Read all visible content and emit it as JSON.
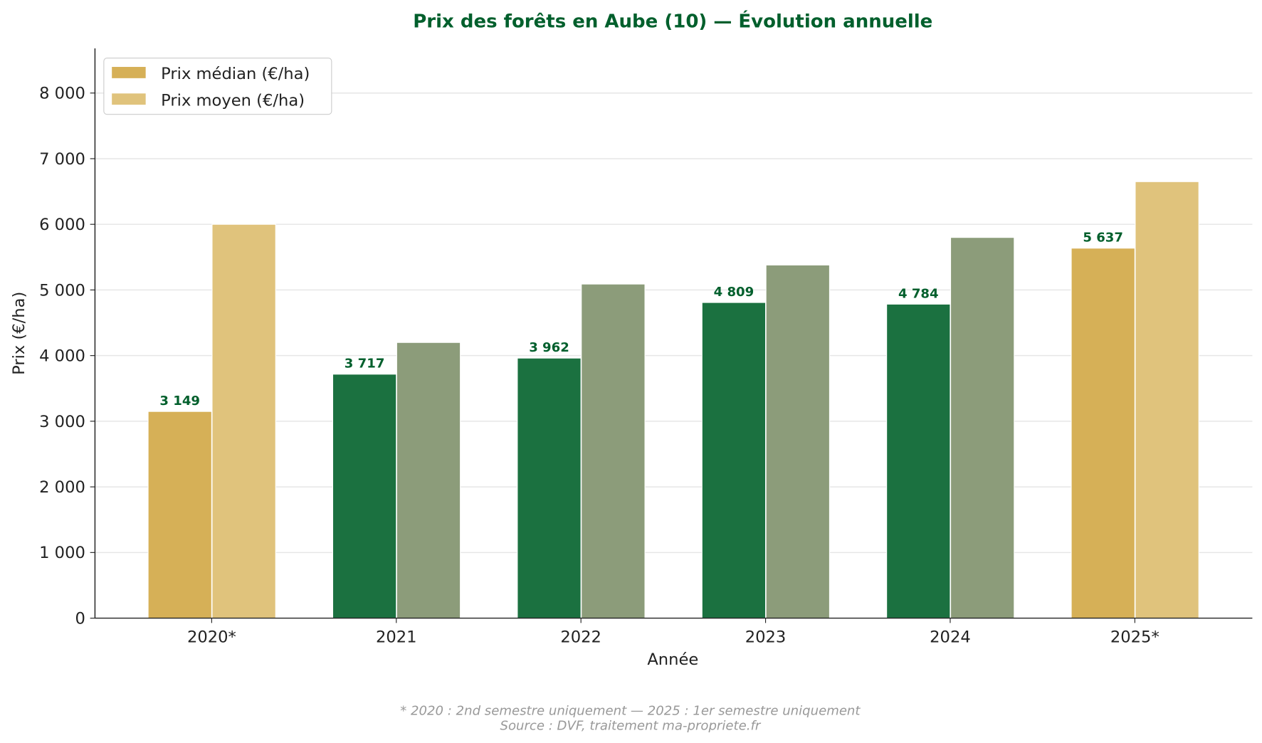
{
  "chart_data": {
    "type": "bar",
    "title": "Prix des forêts en Aube (10) — Évolution annuelle",
    "xlabel": "Année",
    "ylabel": "Prix (€/ha)",
    "ylim": [
      0,
      8680
    ],
    "yticks": [
      0,
      1000,
      2000,
      3000,
      4000,
      5000,
      6000,
      7000,
      8000
    ],
    "ytick_labels": [
      "0",
      "1 000",
      "2 000",
      "3 000",
      "4 000",
      "5 000",
      "6 000",
      "7 000",
      "8 000"
    ],
    "grid": "horizontal",
    "legend_position": "top-left",
    "categories": [
      "2020*",
      "2021",
      "2022",
      "2023",
      "2024",
      "2025*"
    ],
    "partial_years": [
      true,
      false,
      false,
      false,
      false,
      true
    ],
    "series": [
      {
        "name": "Prix médian (€/ha)",
        "values": [
          3149,
          3717,
          3962,
          4809,
          4784,
          5637
        ],
        "data_labels": [
          "3 149",
          "3 717",
          "3 962",
          "4 809",
          "4 784",
          "5 637"
        ],
        "color": "#1b7140",
        "partial_color": "#d6b057"
      },
      {
        "name": "Prix moyen (€/ha)",
        "values": [
          6000,
          4200,
          5090,
          5380,
          5800,
          6650
        ],
        "color": "#8c9c7a",
        "partial_color": "#e0c37c"
      }
    ],
    "footnote": "* 2020 : 2nd semestre uniquement — 2025 : 1er semestre uniquement",
    "source": "Source : DVF, traitement ma-propriete.fr",
    "colors": {
      "title": "#005f2c",
      "label": "#005f2c",
      "grid": "#e6e6e6",
      "footnote": "#999999"
    }
  }
}
